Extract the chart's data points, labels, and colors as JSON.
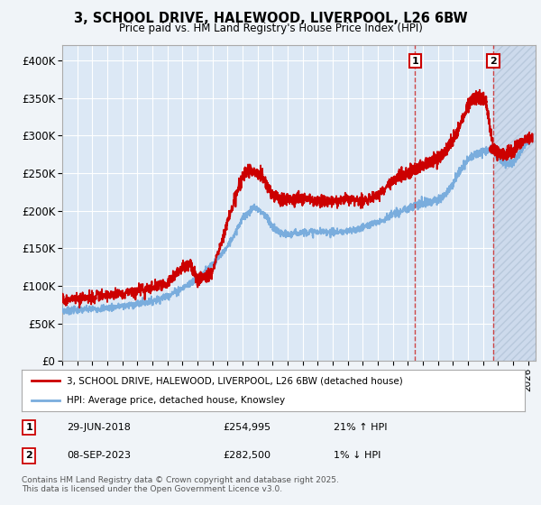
{
  "title": "3, SCHOOL DRIVE, HALEWOOD, LIVERPOOL, L26 6BW",
  "subtitle": "Price paid vs. HM Land Registry's House Price Index (HPI)",
  "xlim_start": 1995.0,
  "xlim_end": 2026.5,
  "ylim_min": 0,
  "ylim_max": 420000,
  "yticks": [
    0,
    50000,
    100000,
    150000,
    200000,
    250000,
    300000,
    350000,
    400000
  ],
  "red_line_color": "#cc0000",
  "blue_line_color": "#7aaddd",
  "marker1_x": 2018.49,
  "marker1_y": 254995,
  "marker2_x": 2023.68,
  "marker2_y": 282500,
  "legend_red": "3, SCHOOL DRIVE, HALEWOOD, LIVERPOOL, L26 6BW (detached house)",
  "legend_blue": "HPI: Average price, detached house, Knowsley",
  "annotation1_date": "29-JUN-2018",
  "annotation1_price": "£254,995",
  "annotation1_hpi": "21% ↑ HPI",
  "annotation2_date": "08-SEP-2023",
  "annotation2_price": "£282,500",
  "annotation2_hpi": "1% ↓ HPI",
  "footer": "Contains HM Land Registry data © Crown copyright and database right 2025.\nThis data is licensed under the Open Government Licence v3.0.",
  "background_color": "#f0f4f8",
  "plot_bg_color": "#dce8f5",
  "hatch_bg_color": "#cddaec"
}
